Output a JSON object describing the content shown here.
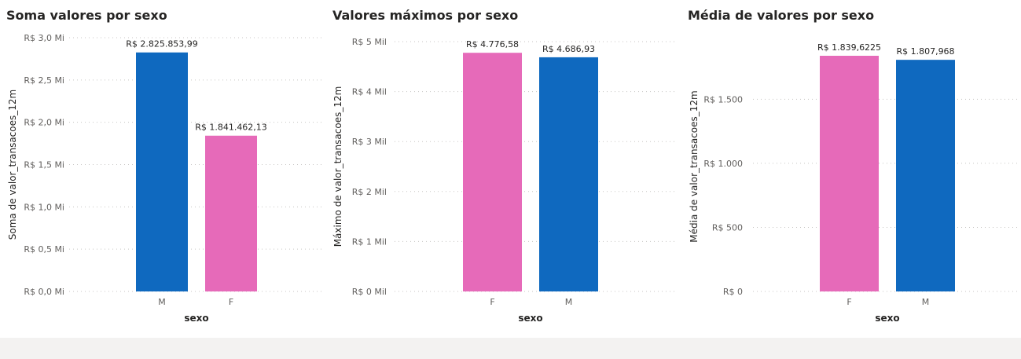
{
  "colors": {
    "M": "#0f69bf",
    "F": "#e66ab9"
  },
  "charts": [
    {
      "title": "Soma valores por sexo",
      "chart_data": {
        "type": "bar",
        "categories": [
          "M",
          "F"
        ],
        "values": [
          2825853.99,
          1841462.13
        ],
        "data_labels": [
          "R$ 2.825.853,99",
          "R$ 1.841.462,13"
        ],
        "ylim": [
          0,
          3000000
        ],
        "yticks": [
          0,
          500000,
          1000000,
          1500000,
          2000000,
          2500000,
          3000000
        ],
        "ytick_labels": [
          "R$ 0,0 Mi",
          "R$ 0,5 Mi",
          "R$ 1,0 Mi",
          "R$ 1,5 Mi",
          "R$ 2,0 Mi",
          "R$ 2,5 Mi",
          "R$ 3,0 Mi"
        ],
        "xlabel": "sexo",
        "ylabel": "Soma de valor_transacoes_12m",
        "grid": true,
        "legend": "none"
      }
    },
    {
      "title": "Valores máximos por sexo",
      "chart_data": {
        "type": "bar",
        "categories": [
          "F",
          "M"
        ],
        "values": [
          4776.58,
          4686.93
        ],
        "data_labels": [
          "R$ 4.776,58",
          "R$ 4.686,93"
        ],
        "ylim": [
          0,
          5000
        ],
        "yticks": [
          0,
          1000,
          2000,
          3000,
          4000,
          5000
        ],
        "ytick_labels": [
          "R$ 0 Mil",
          "R$ 1 Mil",
          "R$ 2 Mil",
          "R$ 3 Mil",
          "R$ 4 Mil",
          "R$ 5 Mil"
        ],
        "xlabel": "sexo",
        "ylabel": "Máximo de valor_transacoes_12m",
        "grid": true,
        "legend": "none"
      }
    },
    {
      "title": "Média de valores por sexo",
      "chart_data": {
        "type": "bar",
        "categories": [
          "F",
          "M"
        ],
        "values": [
          1839.6225,
          1807.968
        ],
        "data_labels": [
          "R$ 1.839,6225",
          "R$ 1.807,968"
        ],
        "ylim": [
          0,
          1950
        ],
        "yticks": [
          0,
          500,
          1000,
          1500
        ],
        "ytick_labels": [
          "R$ 0",
          "R$ 500",
          "R$ 1.000",
          "R$ 1.500"
        ],
        "xlabel": "sexo",
        "ylabel": "Média de valor_transacoes_12m",
        "grid": true,
        "legend": "none"
      }
    }
  ]
}
